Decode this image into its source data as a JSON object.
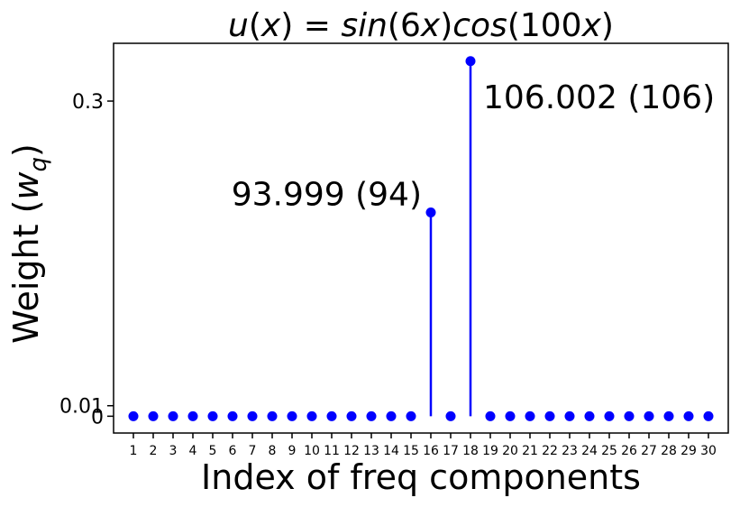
{
  "chart_data": {
    "type": "stem",
    "title_parts": [
      "u",
      "(",
      "x",
      ")",
      " = ",
      "sin",
      "(",
      "6",
      "x",
      ")",
      "cos",
      "(",
      "100",
      "x",
      ")"
    ],
    "xlabel": "Index of freq components",
    "ylabel": "Weight (",
    "ylabel_symbol": "w",
    "ylabel_sub": "q",
    "ylabel_close": ")",
    "x": [
      1,
      2,
      3,
      4,
      5,
      6,
      7,
      8,
      9,
      10,
      11,
      12,
      13,
      14,
      15,
      16,
      17,
      18,
      19,
      20,
      21,
      22,
      23,
      24,
      25,
      26,
      27,
      28,
      29,
      30
    ],
    "values": [
      0,
      0,
      0,
      0,
      0,
      0,
      0,
      0,
      0,
      0,
      0,
      0,
      0,
      0,
      0,
      0.194,
      0,
      0.338,
      0,
      0,
      0,
      0,
      0,
      0,
      0,
      0,
      0,
      0,
      0,
      0
    ],
    "yticks": [
      0,
      0.01,
      0.3
    ],
    "ytick_labels": [
      "0",
      "0.01",
      "0.3"
    ],
    "ylim": [
      -0.016,
      0.355
    ],
    "xlim": [
      0,
      31
    ],
    "color": "#0000ff",
    "grid": false,
    "annotations": [
      {
        "x": 16,
        "text": "93.999 (94)",
        "side": "left"
      },
      {
        "x": 18,
        "text": "106.002 (106)",
        "side": "right"
      }
    ]
  }
}
